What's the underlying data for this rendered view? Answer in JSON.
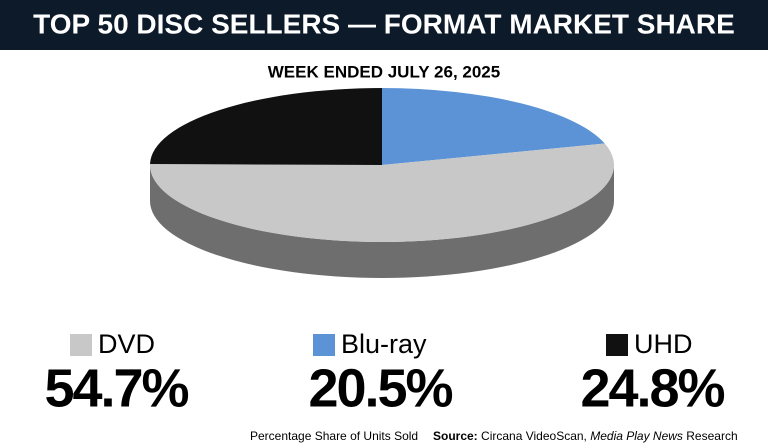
{
  "chart_data": {
    "type": "pie",
    "title": "TOP 50 DISC SELLERS — FORMAT MARKET SHARE",
    "subtitle": "WEEK ENDED JULY 26, 2025",
    "categories": [
      "DVD",
      "Blu-ray",
      "UHD"
    ],
    "values": [
      54.7,
      20.5,
      24.8
    ],
    "value_labels": [
      "54.7%",
      "20.5%",
      "24.8%"
    ],
    "colors": [
      "#c8c8c8",
      "#5b93d6",
      "#111111"
    ],
    "note": "Percentage Share of Units Sold",
    "source_label": "Source:",
    "source": [
      "Circana VideoScan,",
      "Media Play News",
      "Research"
    ]
  }
}
